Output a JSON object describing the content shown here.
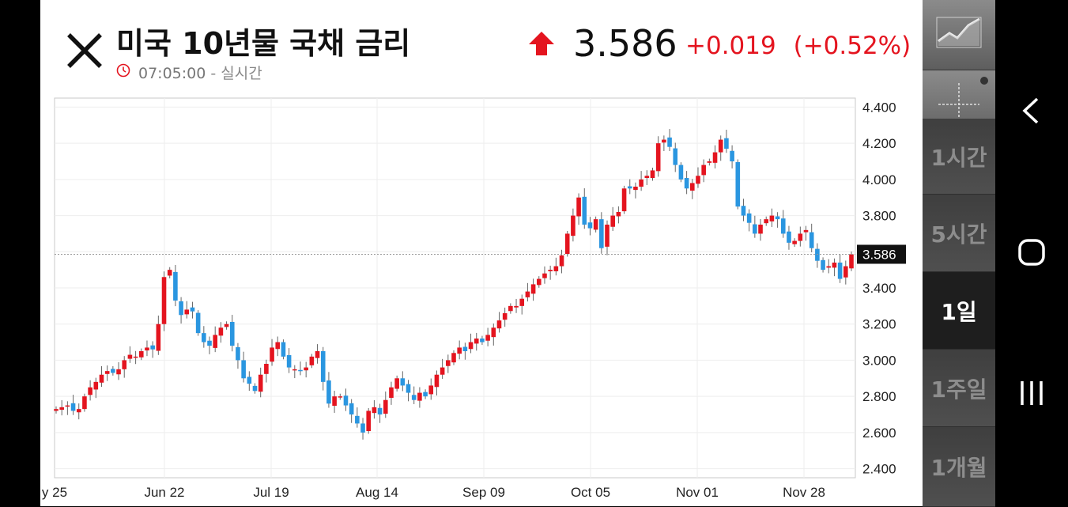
{
  "header": {
    "title": "미국 10년물 국채 금리",
    "time": "07:05:00",
    "mode": "실시간",
    "price": "3.586",
    "change": "+0.019",
    "change_pct": "(+0.52%)",
    "up_color": "#e4141f"
  },
  "sidebar": {
    "tools": [
      {
        "name": "line-chart-icon"
      },
      {
        "name": "crosshair-icon"
      }
    ],
    "periods": [
      {
        "label": "1시간",
        "active": false
      },
      {
        "label": "5시간",
        "active": false
      },
      {
        "label": "1일",
        "active": true
      },
      {
        "label": "1주일",
        "active": false
      },
      {
        "label": "1개월",
        "active": false
      }
    ]
  },
  "navbar": {
    "buttons": [
      "back-icon",
      "home-icon",
      "recents-icon"
    ]
  },
  "chart_data": {
    "type": "candlestick",
    "yticks": [
      "4.400",
      "4.200",
      "4.000",
      "3.800",
      "3.600",
      "3.400",
      "3.200",
      "3.000",
      "2.800",
      "2.600",
      "2.400"
    ],
    "xticks": [
      "y 25",
      "Jun 22",
      "Jul 19",
      "Aug 14",
      "Sep 09",
      "Oct 05",
      "Nov 01",
      "Nov 28"
    ],
    "ylim": [
      2.35,
      4.45
    ],
    "last_price": 3.586,
    "last_price_label": "3.586",
    "up_color": "#e4141f",
    "down_color": "#2a96e0",
    "approx_close_series": [
      2.73,
      2.74,
      2.75,
      2.72,
      2.73,
      2.8,
      2.85,
      2.88,
      2.92,
      2.94,
      2.93,
      2.95,
      3.0,
      3.03,
      3.02,
      3.05,
      3.07,
      3.06,
      3.2,
      3.46,
      3.5,
      3.33,
      3.25,
      3.28,
      3.27,
      3.15,
      3.1,
      3.08,
      3.14,
      3.18,
      3.2,
      3.08,
      3.0,
      2.9,
      2.87,
      2.83,
      2.92,
      2.98,
      3.07,
      3.1,
      3.02,
      2.96,
      2.95,
      2.94,
      2.96,
      3.02,
      3.05,
      2.88,
      2.76,
      2.8,
      2.8,
      2.75,
      2.7,
      2.65,
      2.6,
      2.72,
      2.74,
      2.7,
      2.78,
      2.85,
      2.9,
      2.86,
      2.82,
      2.78,
      2.82,
      2.8,
      2.86,
      2.92,
      2.96,
      3.0,
      3.04,
      3.07,
      3.05,
      3.1,
      3.12,
      3.1,
      3.14,
      3.18,
      3.22,
      3.26,
      3.3,
      3.3,
      3.34,
      3.38,
      3.42,
      3.45,
      3.48,
      3.5,
      3.52,
      3.58,
      3.7,
      3.8,
      3.9,
      3.75,
      3.73,
      3.78,
      3.62,
      3.75,
      3.8,
      3.82,
      3.95,
      3.95,
      3.96,
      4.0,
      4.02,
      4.05,
      4.2,
      4.22,
      4.18,
      4.08,
      4.0,
      3.95,
      3.98,
      4.02,
      4.08,
      4.1,
      4.15,
      4.22,
      4.17,
      4.1,
      3.85,
      3.8,
      3.76,
      3.7,
      3.75,
      3.78,
      3.8,
      3.78,
      3.7,
      3.65,
      3.66,
      3.7,
      3.72,
      3.62,
      3.55,
      3.5,
      3.52,
      3.54,
      3.45,
      3.52,
      3.586
    ]
  }
}
